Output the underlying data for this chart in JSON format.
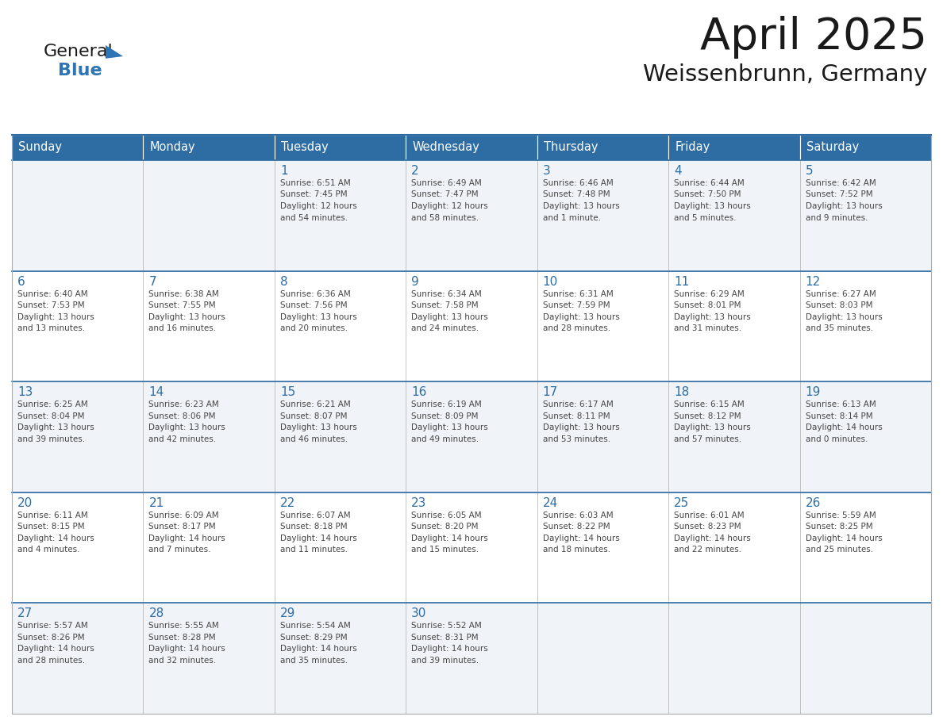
{
  "title": "April 2025",
  "subtitle": "Weissenbrunn, Germany",
  "header_bg_color": "#2E6DA4",
  "header_text_color": "#FFFFFF",
  "cell_bg_color_light": "#F0F4F8",
  "cell_bg_color_white": "#FFFFFF",
  "day_text_color": "#2E6DA4",
  "content_text_color": "#444444",
  "grid_color": "#AAAAAA",
  "row_separator_color": "#2E6DA4",
  "days_of_week": [
    "Sunday",
    "Monday",
    "Tuesday",
    "Wednesday",
    "Thursday",
    "Friday",
    "Saturday"
  ],
  "logo_general_color": "#1a1a1a",
  "logo_blue_color": "#2E75B6",
  "title_color": "#1a1a1a",
  "subtitle_color": "#1a1a1a",
  "weeks": [
    [
      {
        "day": "",
        "content": ""
      },
      {
        "day": "",
        "content": ""
      },
      {
        "day": "1",
        "content": "Sunrise: 6:51 AM\nSunset: 7:45 PM\nDaylight: 12 hours\nand 54 minutes."
      },
      {
        "day": "2",
        "content": "Sunrise: 6:49 AM\nSunset: 7:47 PM\nDaylight: 12 hours\nand 58 minutes."
      },
      {
        "day": "3",
        "content": "Sunrise: 6:46 AM\nSunset: 7:48 PM\nDaylight: 13 hours\nand 1 minute."
      },
      {
        "day": "4",
        "content": "Sunrise: 6:44 AM\nSunset: 7:50 PM\nDaylight: 13 hours\nand 5 minutes."
      },
      {
        "day": "5",
        "content": "Sunrise: 6:42 AM\nSunset: 7:52 PM\nDaylight: 13 hours\nand 9 minutes."
      }
    ],
    [
      {
        "day": "6",
        "content": "Sunrise: 6:40 AM\nSunset: 7:53 PM\nDaylight: 13 hours\nand 13 minutes."
      },
      {
        "day": "7",
        "content": "Sunrise: 6:38 AM\nSunset: 7:55 PM\nDaylight: 13 hours\nand 16 minutes."
      },
      {
        "day": "8",
        "content": "Sunrise: 6:36 AM\nSunset: 7:56 PM\nDaylight: 13 hours\nand 20 minutes."
      },
      {
        "day": "9",
        "content": "Sunrise: 6:34 AM\nSunset: 7:58 PM\nDaylight: 13 hours\nand 24 minutes."
      },
      {
        "day": "10",
        "content": "Sunrise: 6:31 AM\nSunset: 7:59 PM\nDaylight: 13 hours\nand 28 minutes."
      },
      {
        "day": "11",
        "content": "Sunrise: 6:29 AM\nSunset: 8:01 PM\nDaylight: 13 hours\nand 31 minutes."
      },
      {
        "day": "12",
        "content": "Sunrise: 6:27 AM\nSunset: 8:03 PM\nDaylight: 13 hours\nand 35 minutes."
      }
    ],
    [
      {
        "day": "13",
        "content": "Sunrise: 6:25 AM\nSunset: 8:04 PM\nDaylight: 13 hours\nand 39 minutes."
      },
      {
        "day": "14",
        "content": "Sunrise: 6:23 AM\nSunset: 8:06 PM\nDaylight: 13 hours\nand 42 minutes."
      },
      {
        "day": "15",
        "content": "Sunrise: 6:21 AM\nSunset: 8:07 PM\nDaylight: 13 hours\nand 46 minutes."
      },
      {
        "day": "16",
        "content": "Sunrise: 6:19 AM\nSunset: 8:09 PM\nDaylight: 13 hours\nand 49 minutes."
      },
      {
        "day": "17",
        "content": "Sunrise: 6:17 AM\nSunset: 8:11 PM\nDaylight: 13 hours\nand 53 minutes."
      },
      {
        "day": "18",
        "content": "Sunrise: 6:15 AM\nSunset: 8:12 PM\nDaylight: 13 hours\nand 57 minutes."
      },
      {
        "day": "19",
        "content": "Sunrise: 6:13 AM\nSunset: 8:14 PM\nDaylight: 14 hours\nand 0 minutes."
      }
    ],
    [
      {
        "day": "20",
        "content": "Sunrise: 6:11 AM\nSunset: 8:15 PM\nDaylight: 14 hours\nand 4 minutes."
      },
      {
        "day": "21",
        "content": "Sunrise: 6:09 AM\nSunset: 8:17 PM\nDaylight: 14 hours\nand 7 minutes."
      },
      {
        "day": "22",
        "content": "Sunrise: 6:07 AM\nSunset: 8:18 PM\nDaylight: 14 hours\nand 11 minutes."
      },
      {
        "day": "23",
        "content": "Sunrise: 6:05 AM\nSunset: 8:20 PM\nDaylight: 14 hours\nand 15 minutes."
      },
      {
        "day": "24",
        "content": "Sunrise: 6:03 AM\nSunset: 8:22 PM\nDaylight: 14 hours\nand 18 minutes."
      },
      {
        "day": "25",
        "content": "Sunrise: 6:01 AM\nSunset: 8:23 PM\nDaylight: 14 hours\nand 22 minutes."
      },
      {
        "day": "26",
        "content": "Sunrise: 5:59 AM\nSunset: 8:25 PM\nDaylight: 14 hours\nand 25 minutes."
      }
    ],
    [
      {
        "day": "27",
        "content": "Sunrise: 5:57 AM\nSunset: 8:26 PM\nDaylight: 14 hours\nand 28 minutes."
      },
      {
        "day": "28",
        "content": "Sunrise: 5:55 AM\nSunset: 8:28 PM\nDaylight: 14 hours\nand 32 minutes."
      },
      {
        "day": "29",
        "content": "Sunrise: 5:54 AM\nSunset: 8:29 PM\nDaylight: 14 hours\nand 35 minutes."
      },
      {
        "day": "30",
        "content": "Sunrise: 5:52 AM\nSunset: 8:31 PM\nDaylight: 14 hours\nand 39 minutes."
      },
      {
        "day": "",
        "content": ""
      },
      {
        "day": "",
        "content": ""
      },
      {
        "day": "",
        "content": ""
      }
    ]
  ]
}
